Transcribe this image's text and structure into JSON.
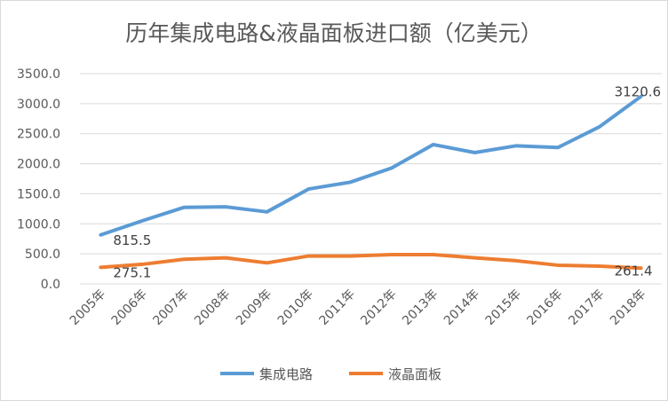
{
  "chart_data": {
    "type": "line",
    "title": "历年集成电路&液晶面板进口额（亿美元）",
    "categories": [
      "2005年",
      "2006年",
      "2007年",
      "2008年",
      "2009年",
      "2010年",
      "2011年",
      "2012年",
      "2013年",
      "2014年",
      "2015年",
      "2016年",
      "2017年",
      "2018年"
    ],
    "series": [
      {
        "name": "集成电路",
        "color": "#5b9bd5",
        "values": [
          815.5,
          1050,
          1273,
          1283,
          1199,
          1579,
          1692,
          1929,
          2319,
          2186,
          2299,
          2270,
          2615,
          3120.6
        ]
      },
      {
        "name": "液晶面板",
        "color": "#ed7d31",
        "values": [
          275.1,
          326,
          410,
          434,
          350,
          464,
          464,
          488,
          488,
          434,
          385,
          311,
          296,
          261.4
        ]
      }
    ],
    "data_labels": [
      {
        "series": 0,
        "index": 0,
        "text": "815.5"
      },
      {
        "series": 0,
        "index": 13,
        "text": "3120.6"
      },
      {
        "series": 1,
        "index": 0,
        "text": "275.1"
      },
      {
        "series": 1,
        "index": 13,
        "text": "261.4"
      }
    ],
    "yticks": [
      "0.0",
      "500.0",
      "1000.0",
      "1500.0",
      "2000.0",
      "2500.0",
      "3000.0",
      "3500.0"
    ],
    "ylim": [
      0,
      3500
    ],
    "grid": true,
    "legend": "bottom",
    "xlabel": "",
    "ylabel": ""
  }
}
